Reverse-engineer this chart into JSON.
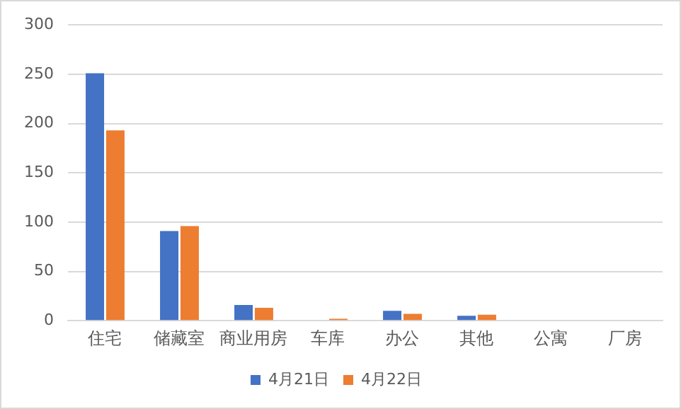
{
  "chart_data": {
    "type": "bar",
    "categories": [
      "住宅",
      "储藏室",
      "商业用房",
      "车库",
      "办公",
      "其他",
      "公寓",
      "厂房"
    ],
    "series": [
      {
        "name": "4月21日",
        "color": "#4472c4",
        "values": [
          251,
          91,
          16,
          0,
          10,
          5,
          0,
          0
        ]
      },
      {
        "name": "4月22日",
        "color": "#ed7d31",
        "values": [
          193,
          96,
          13,
          2,
          7,
          6,
          0,
          0
        ]
      }
    ],
    "ylim": [
      0,
      300
    ],
    "yticks": [
      0,
      50,
      100,
      150,
      200,
      250,
      300
    ],
    "grid": "y",
    "legend": "bottom"
  }
}
